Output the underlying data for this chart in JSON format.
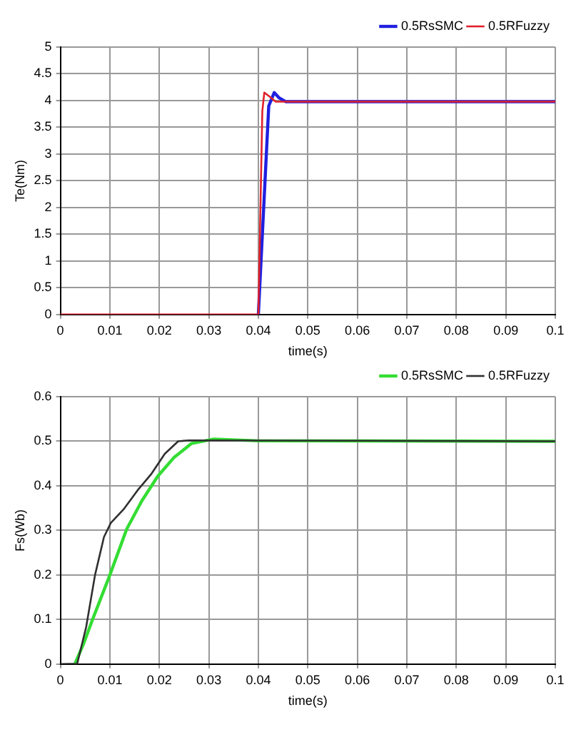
{
  "chart_data": [
    {
      "type": "line",
      "xlabel": "time(s)",
      "ylabel": "Te(Nm)",
      "xlim": [
        0,
        0.1
      ],
      "xticks": [
        0,
        0.01,
        0.02,
        0.03,
        0.04,
        0.05,
        0.06,
        0.07,
        0.08,
        0.09,
        0.1
      ],
      "ylim": [
        0,
        5
      ],
      "yticks": [
        0,
        0.5,
        1,
        1.5,
        2,
        2.5,
        3,
        3.5,
        4,
        4.5,
        5
      ],
      "grid": true,
      "legend": "top right",
      "marker": "none",
      "line_style": "solid",
      "series": [
        {
          "name": "0.5RsSMC",
          "color": "#2020e0",
          "x": [
            0.04,
            0.0421,
            0.0432,
            0.0442,
            0.0455,
            0.1
          ],
          "values": [
            0,
            3.9,
            4.15,
            4.05,
            3.98,
            3.98
          ]
        },
        {
          "name": "0.5RFuzzy",
          "color": "#e0202a",
          "x": [
            0,
            0.04,
            0.0408,
            0.0412,
            0.0422,
            0.0435,
            0.1
          ],
          "values": [
            0,
            0,
            3.8,
            4.15,
            4.08,
            3.98,
            3.98
          ]
        }
      ]
    },
    {
      "type": "line",
      "xlabel": "time(s)",
      "ylabel": "Fs(Wb)",
      "xlim": [
        0,
        0.1
      ],
      "xticks": [
        0,
        0.01,
        0.02,
        0.03,
        0.04,
        0.05,
        0.06,
        0.07,
        0.08,
        0.09,
        0.1
      ],
      "ylim": [
        0,
        0.6
      ],
      "yticks": [
        0,
        0.1,
        0.2,
        0.3,
        0.4,
        0.5,
        0.6
      ],
      "grid": true,
      "legend": "top right",
      "marker": "none",
      "line_style": "solid",
      "series": [
        {
          "name": "0.5RsSMC",
          "color": "#33dd33",
          "x": [
            0.0029,
            0.0047,
            0.0065,
            0.01,
            0.0134,
            0.0165,
            0.0197,
            0.0229,
            0.0265,
            0.031,
            0.04,
            0.1
          ],
          "values": [
            0,
            0.046,
            0.1,
            0.2,
            0.303,
            0.367,
            0.422,
            0.463,
            0.495,
            0.505,
            0.501,
            0.5
          ]
        },
        {
          "name": "0.5RFuzzy",
          "color": "#303030",
          "x": [
            0,
            0.0034,
            0.0052,
            0.007,
            0.0088,
            0.0102,
            0.0129,
            0.0156,
            0.0184,
            0.0211,
            0.0238,
            0.026,
            0.1
          ],
          "values": [
            0,
            0.001,
            0.083,
            0.2,
            0.285,
            0.317,
            0.349,
            0.39,
            0.427,
            0.472,
            0.5,
            0.502,
            0.5
          ]
        }
      ]
    }
  ]
}
